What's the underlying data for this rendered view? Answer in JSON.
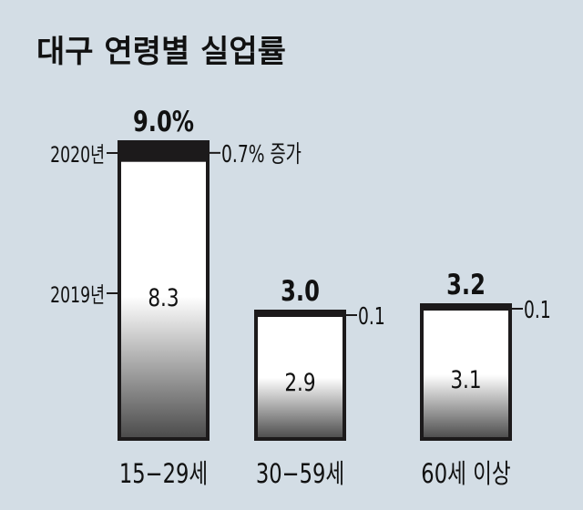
{
  "title": "대구 연령별 실업률",
  "chart_data": {
    "type": "bar",
    "title": "대구 연령별 실업률",
    "series": [
      {
        "name": "2019년",
        "values": [
          8.3,
          2.9,
          3.1
        ]
      },
      {
        "name": "2020년",
        "values": [
          9.0,
          3.0,
          3.2
        ]
      }
    ],
    "categories": [
      "15~29세",
      "30~59세",
      "60세 이상"
    ],
    "category_labels": [
      "15−29세",
      "30−59세",
      "60세 이상"
    ],
    "totals_labels": [
      "9.0%",
      "3.0",
      "3.2"
    ],
    "base_labels": [
      "8.3",
      "2.9",
      "3.1"
    ],
    "increase": [
      0.7,
      0.1,
      0.1
    ],
    "increase_labels": [
      "0.7% 증가",
      "0.1",
      "0.1"
    ],
    "year_labels": {
      "y2020": "2020년",
      "y2019": "2019년"
    },
    "colors": {
      "background": "#d3dde5",
      "increase": "#1c1a1b",
      "outline": "#1c1a1b"
    }
  }
}
